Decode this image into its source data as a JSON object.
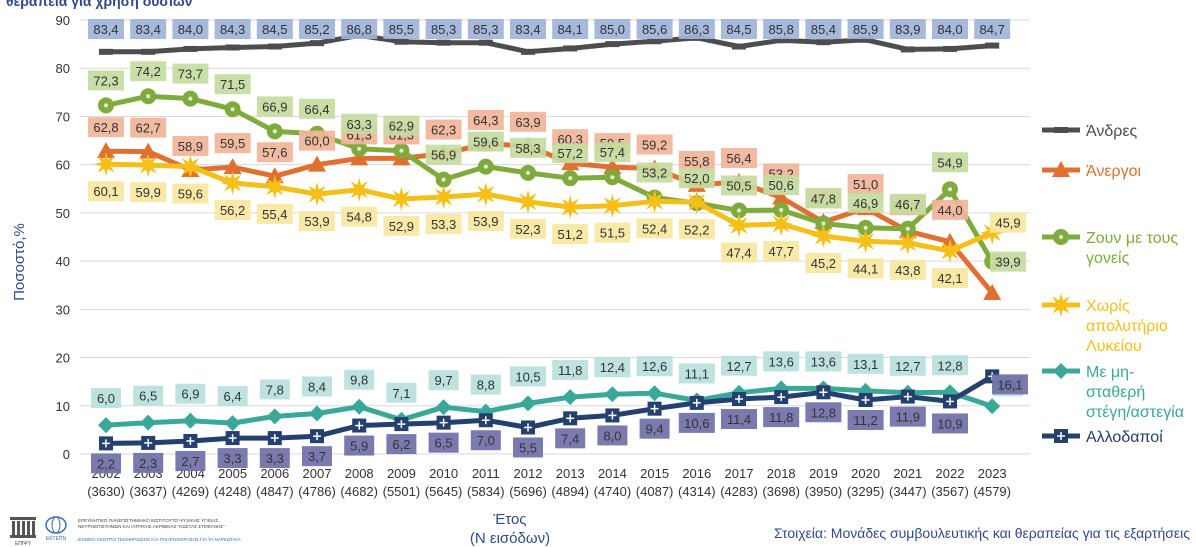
{
  "header": {
    "fragment": "θεραπεία για χρήση ουσιών"
  },
  "chart_data": {
    "type": "line",
    "x": [
      "2002",
      "2003",
      "2004",
      "2005",
      "2006",
      "2007",
      "2008",
      "2009",
      "2010",
      "2011",
      "2012",
      "2013",
      "2014",
      "2015",
      "2016",
      "2017",
      "2018",
      "2019",
      "2020",
      "2021",
      "2022",
      "2023"
    ],
    "x_counts": [
      "(3630)",
      "(3637)",
      "(4269)",
      "(4248)",
      "(4847)",
      "(4786)",
      "(4682)",
      "(5501)",
      "(5645)",
      "(5834)",
      "(5696)",
      "(4894)",
      "(4740)",
      "(4087)",
      "(4314)",
      "(4283)",
      "(3698)",
      "(3950)",
      "(3295)",
      "(3447)",
      "(3567)",
      "(4579)"
    ],
    "xlabel": "Έτος",
    "xlabel_sub": "(Ν εισόδων)",
    "ylabel": "Ποσοστό,%",
    "ylim": [
      0,
      90
    ],
    "yticks": [
      0,
      10,
      20,
      30,
      40,
      50,
      60,
      70,
      80,
      90
    ],
    "legend_position": "right",
    "series": [
      {
        "name": "Άνδρες",
        "color": "#4d4d4d",
        "label_bg": "#9fb3d9",
        "marker": "dash",
        "values": [
          83.4,
          83.4,
          84.0,
          84.3,
          84.5,
          85.2,
          86.8,
          85.5,
          85.3,
          85.3,
          83.4,
          84.1,
          85.0,
          85.6,
          86.3,
          84.5,
          85.8,
          85.4,
          85.9,
          83.9,
          84.0,
          84.7
        ],
        "labels": [
          "83,4",
          "83,4",
          "84,0",
          "84,3",
          "84,5",
          "85,2",
          "86,8",
          "85,5",
          "85,3",
          "85,3",
          "83,4",
          "84,1",
          "85,0",
          "85,6",
          "86,3",
          "84,5",
          "85,8",
          "85,4",
          "85,9",
          "83,9",
          "84,0",
          "84,7"
        ]
      },
      {
        "name": "Άνεργοι",
        "color": "#e07030",
        "label_bg": "#f2b49a",
        "marker": "triangle",
        "values": [
          62.8,
          62.7,
          58.9,
          59.5,
          57.6,
          60.0,
          61.3,
          61.3,
          62.3,
          64.3,
          63.9,
          60.3,
          59.5,
          59.2,
          55.8,
          56.4,
          53.2,
          48.1,
          51.0,
          46.2,
          44.0,
          33.4
        ],
        "labels": [
          "62,8",
          "62,7",
          "58,9",
          "59,5",
          "57,6",
          "60,0",
          "61,3",
          "61,3",
          "62,3",
          "64,3",
          "63,9",
          "60,3",
          "59,5",
          "59,2",
          "55,8",
          "56,4",
          "53,2",
          "48,1",
          "51,0",
          "46,2",
          "44,0",
          ""
        ]
      },
      {
        "name": "Ζουν με τους γονείς",
        "name_lines": [
          "Ζουν με τους",
          "γονείς"
        ],
        "color": "#7fab3c",
        "label_bg": "#c5dca0",
        "marker": "circle",
        "values": [
          72.3,
          74.2,
          73.7,
          71.5,
          66.9,
          66.4,
          63.3,
          62.9,
          56.9,
          59.6,
          58.3,
          57.2,
          57.4,
          53.2,
          52.0,
          50.5,
          50.6,
          47.8,
          46.9,
          46.7,
          54.9,
          39.9
        ],
        "labels": [
          "72,3",
          "74,2",
          "73,7",
          "71,5",
          "66,9",
          "66,4",
          "63,3",
          "62,9",
          "56,9",
          "59,6",
          "58,3",
          "57,2",
          "57,4",
          "53,2",
          "52,0",
          "50,5",
          "50,6",
          "47,8",
          "46,9",
          "46,7",
          "54,9",
          "39,9"
        ]
      },
      {
        "name": "Χωρίς απολυτήριο Λυκείου",
        "name_lines": [
          "Χωρίς",
          "απολυτήριο",
          "Λυκείου"
        ],
        "color": "#f5bf18",
        "label_bg": "#f7e7a0",
        "marker": "star",
        "values": [
          60.1,
          59.9,
          59.6,
          56.2,
          55.4,
          53.9,
          54.8,
          52.9,
          53.3,
          53.9,
          52.3,
          51.2,
          51.5,
          52.4,
          52.2,
          47.4,
          47.7,
          45.2,
          44.1,
          43.8,
          42.1,
          45.9
        ],
        "labels": [
          "60,1",
          "59,9",
          "59,6",
          "56,2",
          "55,4",
          "53,9",
          "54,8",
          "52,9",
          "53,3",
          "53,9",
          "52,3",
          "51,2",
          "51,5",
          "52,4",
          "52,2",
          "47,4",
          "47,7",
          "45,2",
          "44,1",
          "43,8",
          "42,1",
          "45,9"
        ]
      },
      {
        "name": "Με μη-σταθερή στέγη/αστεγία",
        "name_lines": [
          "Με μη-",
          "σταθερή",
          "στέγη/αστεγία"
        ],
        "color": "#3aa898",
        "label_bg": "#b9e0dc",
        "marker": "diamond",
        "values": [
          6.0,
          6.5,
          6.9,
          6.4,
          7.8,
          8.4,
          9.8,
          7.1,
          9.7,
          8.8,
          10.5,
          11.8,
          12.4,
          12.6,
          11.1,
          12.7,
          13.6,
          13.6,
          13.1,
          12.7,
          12.8,
          9.9
        ],
        "labels": [
          "6,0",
          "6,5",
          "6,9",
          "6,4",
          "7,8",
          "8,4",
          "9,8",
          "7,1",
          "9,7",
          "8,8",
          "10,5",
          "11,8",
          "12,4",
          "12,6",
          "11,1",
          "12,7",
          "13,6",
          "13,6",
          "13,1",
          "12,7",
          "12,8",
          "9,9"
        ]
      },
      {
        "name": "Αλλοδαποί",
        "color": "#24406e",
        "label_bg": "#6f6fa8",
        "marker": "square",
        "values": [
          2.2,
          2.3,
          2.7,
          3.3,
          3.3,
          3.7,
          5.9,
          6.2,
          6.5,
          7.0,
          5.5,
          7.4,
          8.0,
          9.4,
          10.6,
          11.4,
          11.8,
          12.8,
          11.2,
          11.9,
          10.9,
          16.1
        ],
        "labels": [
          "2,2",
          "2,3",
          "2,7",
          "3,3",
          "3,3",
          "3,7",
          "5,9",
          "6,2",
          "6,5",
          "7,0",
          "5,5",
          "7,4",
          "8,0",
          "9,4",
          "10,6",
          "11,4",
          "11,8",
          "12,8",
          "11,2",
          "11,9",
          "10,9",
          "16,1"
        ]
      }
    ],
    "source": "Στοιχεία: Μονάδες συμβουλευτικής και θεραπείας για τις εξαρτήσεις"
  },
  "logos": {
    "logo1_lines": [
      "ΕΡΕΥΝΗΤΙΚΟ ΠΑΝΕΠΙΣΤΗΜΙΑΚΟ ΙΝΣΤΙΤΟΥΤΟ ΨΥΧΙΚΗΣ ΥΓΙΕΙΑΣ,",
      "ΝΕΥΡΟΕΠΙΣΤΗΜΩΝ ΚΑΙ ΙΑΤΡΙΚΗΣ ΑΚΡΙΒΕΙΑΣ \"ΚΩΣΤΑΣ ΣΤΕΦΑΝΗΣ\""
    ],
    "logo2_line": "ΕΘΝΙΚΟ ΚΕΝΤΡΟ ΤΕΚΜΗΡΙΩΣΗΣ ΚΑΙ ΠΛΗΡΟΦΟΡΗΣΗΣ ΓΙΑ ΤΑ ΝΑΡΚΩΤΙΚΑ",
    "acronym1": "ΕΠΙΨΥ",
    "acronym2": "ΕΚΤΕΠΝ"
  }
}
